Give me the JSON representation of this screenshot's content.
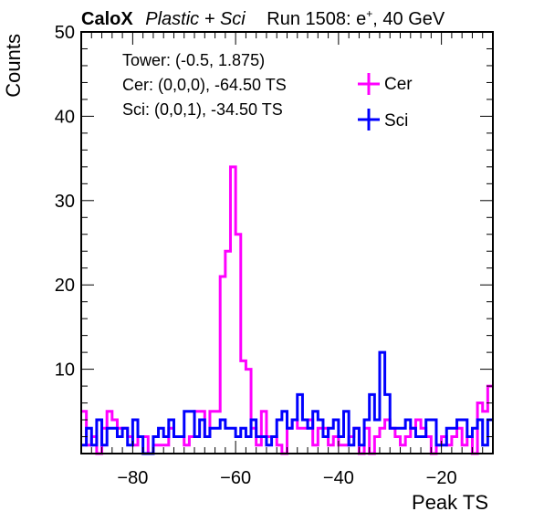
{
  "chart_data": {
    "type": "line",
    "title": {
      "brand": "CaloX",
      "subtitle": "Plastic + Sci",
      "run": "Run 1508: e",
      "run_sup": "+",
      "run_tail": ", 40 GeV"
    },
    "xlabel": "Peak TS",
    "ylabel": "Counts",
    "xlim": [
      -90,
      -10
    ],
    "ylim": [
      0,
      50
    ],
    "x_ticks": [
      -80,
      -60,
      -40,
      -20
    ],
    "y_ticks": [
      10,
      20,
      30,
      40,
      50
    ],
    "annotations": [
      "Tower: (-0.5, 1.875)",
      "Cer: (0,0,0), -64.50 TS",
      "Sci: (0,0,1), -34.50 TS"
    ],
    "legend_position": "top-right",
    "bin_start": -90,
    "bin_width": 1,
    "series": [
      {
        "name": "Cer",
        "color": "#ff00ff",
        "values": [
          5,
          1,
          2,
          0,
          3,
          5,
          4,
          3,
          3,
          2,
          1,
          2,
          2,
          0,
          1,
          1,
          1,
          3,
          2,
          2,
          1,
          2,
          5,
          5,
          2,
          5,
          5,
          21,
          24,
          34,
          26,
          11,
          10,
          3,
          1,
          5,
          2,
          2,
          1,
          0,
          3,
          4,
          3,
          3,
          4,
          1,
          3,
          3,
          1,
          2,
          1,
          1,
          2,
          3,
          0,
          3,
          0,
          2,
          3,
          4,
          3,
          2,
          1,
          2,
          3,
          4,
          3,
          2,
          0,
          1,
          2,
          1,
          2,
          3,
          1,
          2,
          0,
          6,
          5,
          8
        ]
      },
      {
        "name": "Sci",
        "color": "#0000ff",
        "values": [
          1,
          3,
          1,
          4,
          1,
          3,
          3,
          2,
          3,
          1,
          4,
          2,
          0,
          0,
          2,
          3,
          2,
          4,
          2,
          2,
          5,
          5,
          2,
          4,
          2,
          3,
          3,
          4,
          3,
          3,
          2,
          3,
          2,
          4,
          2,
          2,
          1,
          2,
          4,
          5,
          3,
          4,
          7,
          4,
          3,
          5,
          4,
          2,
          3,
          4,
          2,
          5,
          1,
          3,
          1,
          4,
          7,
          4,
          12,
          7,
          3,
          3,
          3,
          4,
          3,
          2,
          2,
          4,
          4,
          1,
          1,
          3,
          3,
          4,
          4,
          2,
          3,
          4,
          1,
          4
        ]
      }
    ]
  }
}
